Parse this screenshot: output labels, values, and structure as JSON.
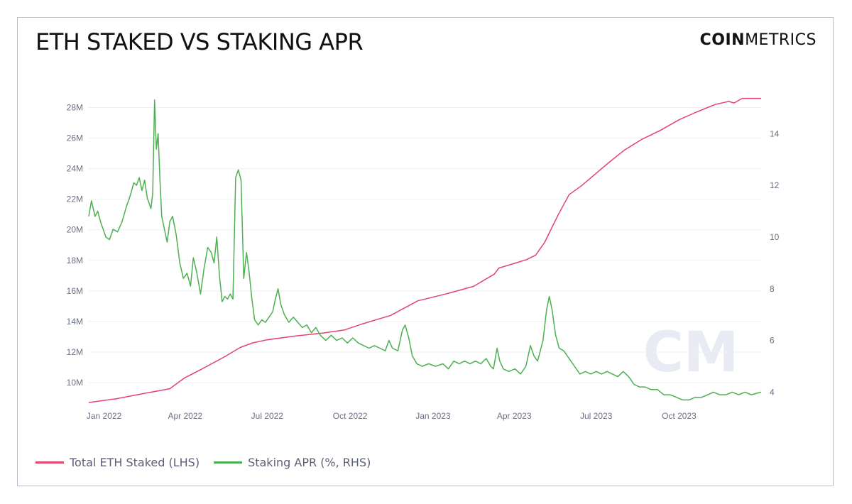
{
  "header": {
    "title": "ETH STAKED VS STAKING APR",
    "brand_bold": "COIN",
    "brand_light": "METRICS"
  },
  "watermark": "CM",
  "colors": {
    "staked": "#e0456b",
    "apr": "#4caf50",
    "grid": "#eeeff3",
    "ticks": "#6b6f85",
    "watermark": "#e8ebf3"
  },
  "chart_data": {
    "type": "line",
    "title": "ETH STAKED VS STAKING APR",
    "x_range": [
      "2021-12-15",
      "2023-12-31"
    ],
    "x_ticks": [
      {
        "date": "2022-01-01",
        "label": "Jan 2022"
      },
      {
        "date": "2022-04-01",
        "label": "Apr 2022"
      },
      {
        "date": "2022-07-01",
        "label": "Jul 2022"
      },
      {
        "date": "2022-10-01",
        "label": "Oct 2022"
      },
      {
        "date": "2023-01-01",
        "label": "Jan 2023"
      },
      {
        "date": "2023-04-01",
        "label": "Apr 2023"
      },
      {
        "date": "2023-07-01",
        "label": "Jul 2023"
      },
      {
        "date": "2023-10-01",
        "label": "Oct 2023"
      }
    ],
    "y_left": {
      "range": [
        8700000,
        29000000
      ],
      "ticks": [
        10000000,
        12000000,
        14000000,
        16000000,
        18000000,
        20000000,
        22000000,
        24000000,
        26000000,
        28000000
      ],
      "tick_labels": [
        "10M",
        "12M",
        "14M",
        "16M",
        "18M",
        "20M",
        "22M",
        "24M",
        "26M",
        "28M"
      ]
    },
    "y_right": {
      "range": [
        3.6,
        15.6
      ],
      "ticks": [
        4,
        6,
        8,
        10,
        12,
        14
      ],
      "tick_labels": [
        "4",
        "6",
        "8",
        "10",
        "12",
        "14"
      ]
    },
    "grid": true,
    "legend_position": "bottom-left",
    "series": [
      {
        "name": "Total ETH Staked (LHS)",
        "axis": "left",
        "color": "#e0456b",
        "points": [
          [
            "2021-12-15",
            8700000
          ],
          [
            "2022-01-15",
            8950000
          ],
          [
            "2022-02-15",
            9300000
          ],
          [
            "2022-03-15",
            9600000
          ],
          [
            "2022-03-31",
            10300000
          ],
          [
            "2022-04-20",
            10900000
          ],
          [
            "2022-05-15",
            11700000
          ],
          [
            "2022-06-01",
            12300000
          ],
          [
            "2022-06-15",
            12600000
          ],
          [
            "2022-07-01",
            12800000
          ],
          [
            "2022-08-01",
            13050000
          ],
          [
            "2022-09-01",
            13250000
          ],
          [
            "2022-09-25",
            13450000
          ],
          [
            "2022-10-15",
            13850000
          ],
          [
            "2022-11-15",
            14400000
          ],
          [
            "2022-12-15",
            15350000
          ],
          [
            "2023-01-15",
            15800000
          ],
          [
            "2023-02-15",
            16300000
          ],
          [
            "2023-03-10",
            17100000
          ],
          [
            "2023-03-15",
            17500000
          ],
          [
            "2023-04-01",
            17800000
          ],
          [
            "2023-04-15",
            18050000
          ],
          [
            "2023-04-25",
            18350000
          ],
          [
            "2023-05-05",
            19200000
          ],
          [
            "2023-05-20",
            21000000
          ],
          [
            "2023-06-01",
            22300000
          ],
          [
            "2023-06-15",
            22900000
          ],
          [
            "2023-07-01",
            23700000
          ],
          [
            "2023-07-15",
            24400000
          ],
          [
            "2023-08-01",
            25200000
          ],
          [
            "2023-08-20",
            25900000
          ],
          [
            "2023-09-10",
            26500000
          ],
          [
            "2023-10-01",
            27200000
          ],
          [
            "2023-10-20",
            27700000
          ],
          [
            "2023-11-10",
            28200000
          ],
          [
            "2023-11-25",
            28400000
          ],
          [
            "2023-12-01",
            28300000
          ],
          [
            "2023-12-10",
            28600000
          ],
          [
            "2023-12-31",
            28600000
          ]
        ]
      },
      {
        "name": "Staking APR (%, RHS)",
        "axis": "right",
        "color": "#4caf50",
        "points": [
          [
            "2021-12-15",
            10.8
          ],
          [
            "2021-12-18",
            11.4
          ],
          [
            "2021-12-22",
            10.8
          ],
          [
            "2021-12-25",
            11.0
          ],
          [
            "2021-12-28",
            10.6
          ],
          [
            "2022-01-03",
            10.0
          ],
          [
            "2022-01-07",
            9.9
          ],
          [
            "2022-01-11",
            10.3
          ],
          [
            "2022-01-16",
            10.2
          ],
          [
            "2022-01-21",
            10.6
          ],
          [
            "2022-01-26",
            11.2
          ],
          [
            "2022-01-30",
            11.6
          ],
          [
            "2022-02-03",
            12.1
          ],
          [
            "2022-02-06",
            12.0
          ],
          [
            "2022-02-09",
            12.3
          ],
          [
            "2022-02-12",
            11.8
          ],
          [
            "2022-02-15",
            12.2
          ],
          [
            "2022-02-18",
            11.5
          ],
          [
            "2022-02-22",
            11.1
          ],
          [
            "2022-02-24",
            11.7
          ],
          [
            "2022-02-26",
            15.3
          ],
          [
            "2022-02-28",
            13.4
          ],
          [
            "2022-03-02",
            14.0
          ],
          [
            "2022-03-04",
            12.2
          ],
          [
            "2022-03-06",
            10.8
          ],
          [
            "2022-03-09",
            10.3
          ],
          [
            "2022-03-12",
            9.8
          ],
          [
            "2022-03-15",
            10.6
          ],
          [
            "2022-03-18",
            10.8
          ],
          [
            "2022-03-22",
            10.1
          ],
          [
            "2022-03-26",
            9.0
          ],
          [
            "2022-03-30",
            8.4
          ],
          [
            "2022-04-03",
            8.6
          ],
          [
            "2022-04-07",
            8.1
          ],
          [
            "2022-04-10",
            9.2
          ],
          [
            "2022-04-14",
            8.6
          ],
          [
            "2022-04-18",
            7.8
          ],
          [
            "2022-04-22",
            8.8
          ],
          [
            "2022-04-26",
            9.6
          ],
          [
            "2022-04-30",
            9.4
          ],
          [
            "2022-05-03",
            9.0
          ],
          [
            "2022-05-06",
            10.0
          ],
          [
            "2022-05-09",
            8.5
          ],
          [
            "2022-05-12",
            7.5
          ],
          [
            "2022-05-15",
            7.7
          ],
          [
            "2022-05-18",
            7.6
          ],
          [
            "2022-05-21",
            7.8
          ],
          [
            "2022-05-24",
            7.6
          ],
          [
            "2022-05-27",
            12.3
          ],
          [
            "2022-05-30",
            12.6
          ],
          [
            "2022-06-02",
            12.2
          ],
          [
            "2022-06-05",
            8.4
          ],
          [
            "2022-06-08",
            9.4
          ],
          [
            "2022-06-11",
            8.6
          ],
          [
            "2022-06-14",
            7.6
          ],
          [
            "2022-06-17",
            6.8
          ],
          [
            "2022-06-21",
            6.6
          ],
          [
            "2022-06-25",
            6.8
          ],
          [
            "2022-06-29",
            6.7
          ],
          [
            "2022-07-03",
            6.9
          ],
          [
            "2022-07-07",
            7.1
          ],
          [
            "2022-07-10",
            7.6
          ],
          [
            "2022-07-13",
            8.0
          ],
          [
            "2022-07-16",
            7.4
          ],
          [
            "2022-07-20",
            7.0
          ],
          [
            "2022-07-25",
            6.7
          ],
          [
            "2022-07-30",
            6.9
          ],
          [
            "2022-08-04",
            6.7
          ],
          [
            "2022-08-09",
            6.5
          ],
          [
            "2022-08-14",
            6.6
          ],
          [
            "2022-08-19",
            6.3
          ],
          [
            "2022-08-24",
            6.5
          ],
          [
            "2022-08-29",
            6.2
          ],
          [
            "2022-09-04",
            6.0
          ],
          [
            "2022-09-10",
            6.2
          ],
          [
            "2022-09-16",
            6.0
          ],
          [
            "2022-09-22",
            6.1
          ],
          [
            "2022-09-28",
            5.9
          ],
          [
            "2022-10-04",
            6.1
          ],
          [
            "2022-10-10",
            5.9
          ],
          [
            "2022-10-16",
            5.8
          ],
          [
            "2022-10-22",
            5.7
          ],
          [
            "2022-10-28",
            5.8
          ],
          [
            "2022-11-03",
            5.7
          ],
          [
            "2022-11-09",
            5.6
          ],
          [
            "2022-11-13",
            6.0
          ],
          [
            "2022-11-17",
            5.7
          ],
          [
            "2022-11-23",
            5.6
          ],
          [
            "2022-11-28",
            6.4
          ],
          [
            "2022-12-01",
            6.6
          ],
          [
            "2022-12-05",
            6.1
          ],
          [
            "2022-12-09",
            5.4
          ],
          [
            "2022-12-14",
            5.1
          ],
          [
            "2022-12-20",
            5.0
          ],
          [
            "2022-12-27",
            5.1
          ],
          [
            "2023-01-04",
            5.0
          ],
          [
            "2023-01-12",
            5.1
          ],
          [
            "2023-01-18",
            4.9
          ],
          [
            "2023-01-24",
            5.2
          ],
          [
            "2023-01-30",
            5.1
          ],
          [
            "2023-02-05",
            5.2
          ],
          [
            "2023-02-11",
            5.1
          ],
          [
            "2023-02-17",
            5.2
          ],
          [
            "2023-02-23",
            5.1
          ],
          [
            "2023-03-01",
            5.3
          ],
          [
            "2023-03-06",
            5.0
          ],
          [
            "2023-03-09",
            4.9
          ],
          [
            "2023-03-13",
            5.7
          ],
          [
            "2023-03-16",
            5.2
          ],
          [
            "2023-03-20",
            4.9
          ],
          [
            "2023-03-26",
            4.8
          ],
          [
            "2023-04-02",
            4.9
          ],
          [
            "2023-04-08",
            4.7
          ],
          [
            "2023-04-14",
            5.0
          ],
          [
            "2023-04-19",
            5.8
          ],
          [
            "2023-04-23",
            5.4
          ],
          [
            "2023-04-27",
            5.2
          ],
          [
            "2023-05-03",
            6.0
          ],
          [
            "2023-05-07",
            7.2
          ],
          [
            "2023-05-10",
            7.7
          ],
          [
            "2023-05-13",
            7.2
          ],
          [
            "2023-05-17",
            6.2
          ],
          [
            "2023-05-21",
            5.7
          ],
          [
            "2023-05-26",
            5.6
          ],
          [
            "2023-06-01",
            5.3
          ],
          [
            "2023-06-07",
            5.0
          ],
          [
            "2023-06-13",
            4.7
          ],
          [
            "2023-06-19",
            4.8
          ],
          [
            "2023-06-25",
            4.7
          ],
          [
            "2023-07-01",
            4.8
          ],
          [
            "2023-07-07",
            4.7
          ],
          [
            "2023-07-13",
            4.8
          ],
          [
            "2023-07-19",
            4.7
          ],
          [
            "2023-07-25",
            4.6
          ],
          [
            "2023-07-31",
            4.8
          ],
          [
            "2023-08-06",
            4.6
          ],
          [
            "2023-08-12",
            4.3
          ],
          [
            "2023-08-18",
            4.2
          ],
          [
            "2023-08-24",
            4.2
          ],
          [
            "2023-08-31",
            4.1
          ],
          [
            "2023-09-07",
            4.1
          ],
          [
            "2023-09-14",
            3.9
          ],
          [
            "2023-09-21",
            3.9
          ],
          [
            "2023-09-28",
            3.8
          ],
          [
            "2023-10-05",
            3.7
          ],
          [
            "2023-10-12",
            3.7
          ],
          [
            "2023-10-19",
            3.8
          ],
          [
            "2023-10-26",
            3.8
          ],
          [
            "2023-11-02",
            3.9
          ],
          [
            "2023-11-08",
            4.0
          ],
          [
            "2023-11-15",
            3.9
          ],
          [
            "2023-11-22",
            3.9
          ],
          [
            "2023-11-29",
            4.0
          ],
          [
            "2023-12-06",
            3.9
          ],
          [
            "2023-12-13",
            4.0
          ],
          [
            "2023-12-20",
            3.9
          ],
          [
            "2023-12-31",
            4.0
          ]
        ]
      }
    ]
  },
  "legend": {
    "items": [
      {
        "label": "Total ETH Staked (LHS)",
        "color": "#e0456b"
      },
      {
        "label": "Staking APR (%, RHS)",
        "color": "#4caf50"
      }
    ]
  }
}
